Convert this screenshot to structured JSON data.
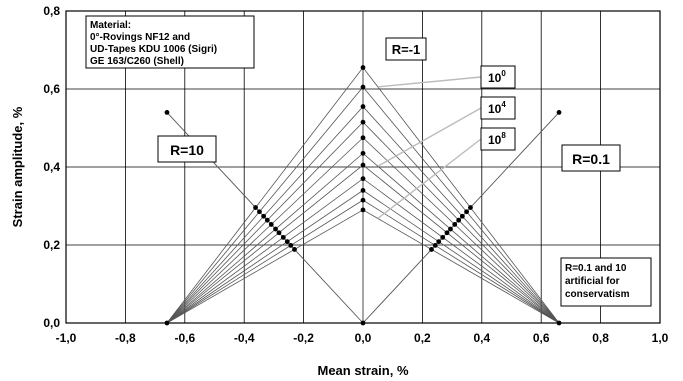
{
  "chart_data": {
    "type": "scatter",
    "xlabel": "Mean strain, %",
    "ylabel": "Strain amplitude, %",
    "xlim": [
      -1.0,
      1.0
    ],
    "ylim": [
      0.0,
      0.8
    ],
    "x_ticks": [
      "-1,0",
      "-0,8",
      "-0,6",
      "-0,4",
      "-0,2",
      "0,0",
      "0,2",
      "0,4",
      "0,6",
      "0,8",
      "1,0"
    ],
    "y_ticks": [
      "0,0",
      "0,2",
      "0,4",
      "0,6",
      "0,8"
    ],
    "grid": true,
    "compression_limit": -0.66,
    "tension_limit": 0.66,
    "r_minus1_amplitudes": [
      0.655,
      0.605,
      0.555,
      0.515,
      0.475,
      0.435,
      0.405,
      0.37,
      0.34,
      0.315,
      0.29
    ],
    "r10_ray": [
      [
        0,
        0
      ],
      [
        -0.66,
        0.54
      ]
    ],
    "r01_ray": [
      [
        0,
        0
      ],
      [
        0.66,
        0.54
      ]
    ],
    "material_lines": [
      "Material:",
      "0°-Rovings NF12 and",
      "UD-Tapes KDU 1006 (Sigri)",
      "GE 163/C260 (Shell)"
    ],
    "r_labels": {
      "r_minus1": "R=-1",
      "r10": "R=10",
      "r01": "R=0.1"
    },
    "cycle_labels": [
      {
        "base": "10",
        "exp": "0"
      },
      {
        "base": "10",
        "exp": "4"
      },
      {
        "base": "10",
        "exp": "8"
      }
    ],
    "note_lines": [
      "R=0.1 and 10",
      "artificial for",
      "conservatism"
    ],
    "colors": {
      "lines": "#555555",
      "grid": "#000000",
      "leader": "#bbbbbb",
      "marker": "#000000"
    }
  }
}
